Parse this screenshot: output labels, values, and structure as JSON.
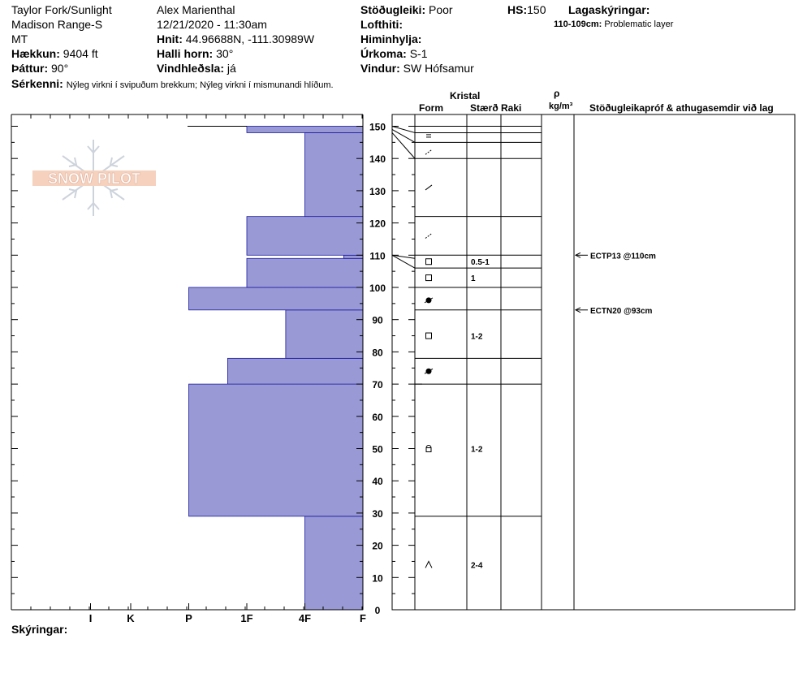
{
  "header": {
    "location": "Taylor Fork/Sunlight",
    "range": "Madison Range-S",
    "state": "MT",
    "elevation_label": "Hækkun:",
    "elevation": "9404 ft",
    "aspect_label": "Þáttur:",
    "aspect": "90°",
    "features_label": "Sérkenni:",
    "features": "Nýleg virkni í svipuðum brekkum; Nýleg virkni í mismunandi hlíðum.",
    "observer": "Alex Marienthal",
    "datetime": "12/21/2020 - 11:30am",
    "coords_label": "Hnit:",
    "coords": "44.96688N, -111.30989W",
    "slope_label": "Halli horn:",
    "slope": "30°",
    "wind_loading_label": "Vindhleðsla:",
    "wind_loading": "já",
    "stability_label": "Stöðugleiki:",
    "stability": "Poor",
    "air_temp_label": "Lofthiti:",
    "sky_label": "Himinhylja:",
    "precip_label": "Úrkoma:",
    "precip": "S-1",
    "wind_label": "Vindur:",
    "wind": "SW Hófsamur",
    "hs_label": "HS:",
    "hs": "150",
    "layer_notes_label": "Lagaskýringar:",
    "layer_note_range": "110-109cm:",
    "layer_note_text": "Problematic layer"
  },
  "columns": {
    "crystal": "Kristal",
    "form": "Form",
    "size": "Stærð",
    "moisture": "Raki",
    "rho": "ρ",
    "density_unit": "kg/m³",
    "tests": "Stöðugleikapróf & athugasemdir við lag"
  },
  "footer": {
    "notes_label": "Skýringar:"
  },
  "logo_text": "SNOW PILOT",
  "chart_data": {
    "type": "bar",
    "orientation": "horizontal",
    "title": "",
    "x_ticks": [
      "I",
      "K",
      "P",
      "1F",
      "4F",
      "F"
    ],
    "y_range": [
      0,
      150
    ],
    "y_ticks": [
      0,
      10,
      20,
      30,
      40,
      50,
      60,
      70,
      80,
      90,
      100,
      110,
      120,
      130,
      140,
      150
    ],
    "hardness_scale": {
      "F": 1,
      "4F": 2,
      "1F": 3,
      "P": 4,
      "K": 5,
      "I": 6
    },
    "bar_color": "#9999d6",
    "hardness_layers": [
      {
        "bottom": 0,
        "top": 29,
        "hardness": 2
      },
      {
        "bottom": 29,
        "top": 70,
        "hardness": 4
      },
      {
        "bottom": 70,
        "top": 78,
        "hardness": 3.33
      },
      {
        "bottom": 78,
        "top": 93,
        "hardness": 2.33
      },
      {
        "bottom": 93,
        "top": 100,
        "hardness": 4
      },
      {
        "bottom": 100,
        "top": 109,
        "hardness": 3
      },
      {
        "bottom": 109,
        "top": 110,
        "hardness": 1.33
      },
      {
        "bottom": 110,
        "top": 122,
        "hardness": 3
      },
      {
        "bottom": 122,
        "top": 148,
        "hardness": 2
      },
      {
        "bottom": 148,
        "top": 150,
        "hardness": 3
      }
    ],
    "layer_boundaries": [
      29,
      70,
      78,
      93,
      100,
      106,
      110,
      122,
      140,
      145,
      148,
      150
    ],
    "grain_layers": [
      {
        "mid": 14,
        "form": "depth-hoar",
        "size": "2-4"
      },
      {
        "mid": 50,
        "form": "faceted-rounding",
        "size": "1-2"
      },
      {
        "mid": 74,
        "form": "melt-freeze",
        "size": ""
      },
      {
        "mid": 85,
        "form": "faceted",
        "size": "1-2"
      },
      {
        "mid": 96,
        "form": "melt-freeze",
        "size": ""
      },
      {
        "mid": 103,
        "form": "faceted",
        "size": "1"
      },
      {
        "mid": 108,
        "form": "faceted",
        "size": "0.5-1"
      },
      {
        "mid": 116,
        "form": "decomposing",
        "size": ""
      },
      {
        "mid": 131,
        "form": "precip-particles",
        "size": ""
      },
      {
        "mid": 142,
        "form": "decomposing",
        "size": ""
      },
      {
        "mid": 147,
        "form": "rounded",
        "size": ""
      }
    ],
    "tests": [
      {
        "depth": 110,
        "label": "ECTP13 @110cm"
      },
      {
        "depth": 93,
        "label": "ECTN20 @93cm"
      }
    ]
  }
}
